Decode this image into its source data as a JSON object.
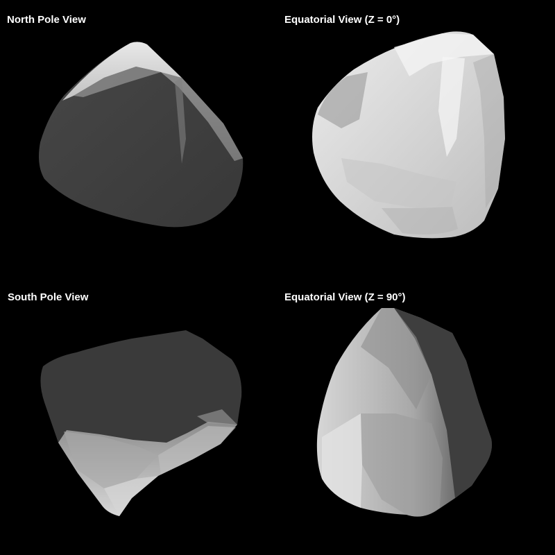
{
  "views": [
    {
      "label": "North Pole View"
    },
    {
      "label": "Equatorial View (Z = 0°)"
    },
    {
      "label": "South Pole View"
    },
    {
      "label": "Equatorial View (Z = 90°)"
    }
  ],
  "colors": {
    "background": "#000000",
    "label": "#ffffff",
    "dark_facet": "#3c3c3c",
    "light_facet": "#e6e6e6"
  }
}
